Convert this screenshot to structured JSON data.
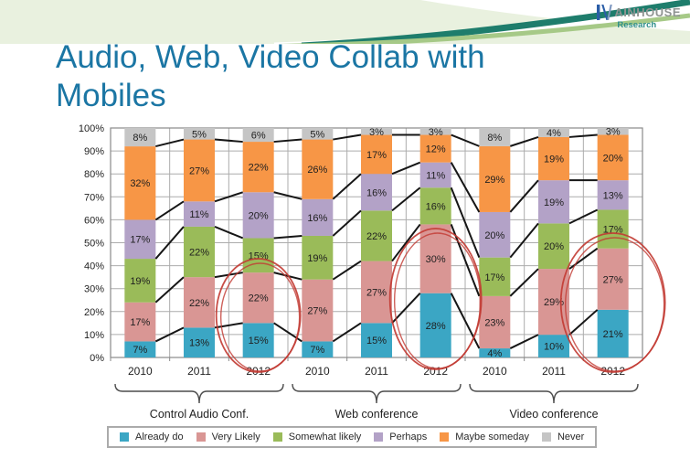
{
  "slide": {
    "title_line1": "Audio, Web, Video Collab with",
    "title_line2": "Mobiles"
  },
  "logo": {
    "wordmark": "AINHOUSE",
    "subtext": "Research"
  },
  "chart_data": {
    "type": "bar",
    "stacked": true,
    "title": "",
    "xlabel": "",
    "ylabel": "",
    "ylim": [
      0,
      100
    ],
    "grid": true,
    "legend_position": "bottom",
    "y_ticks": [
      "0%",
      "10%",
      "20%",
      "30%",
      "40%",
      "50%",
      "60%",
      "70%",
      "80%",
      "90%",
      "100%"
    ],
    "categories": [
      "2010",
      "2011",
      "2012",
      "2010",
      "2011",
      "2012",
      "2010",
      "2011",
      "2012"
    ],
    "group_size": 3,
    "group_labels": [
      "Control Audio Conf.",
      "Web conference",
      "Video conference"
    ],
    "series": [
      {
        "name": "Already do",
        "color": "#3ba6c4",
        "values": [
          7,
          13,
          15,
          7,
          15,
          28,
          4,
          10,
          21
        ]
      },
      {
        "name": "Very Likely",
        "color": "#d99694",
        "values": [
          17,
          22,
          22,
          27,
          27,
          30,
          23,
          29,
          27
        ]
      },
      {
        "name": "Somewhat likely",
        "color": "#9abb59",
        "values": [
          19,
          22,
          15,
          19,
          22,
          16,
          17,
          20,
          17
        ]
      },
      {
        "name": "Perhaps",
        "color": "#b3a2c7",
        "values": [
          17,
          11,
          20,
          16,
          16,
          11,
          20,
          19,
          13
        ]
      },
      {
        "name": "Maybe someday",
        "color": "#f79646",
        "values": [
          32,
          27,
          22,
          26,
          17,
          12,
          29,
          19,
          20
        ]
      },
      {
        "name": "Never",
        "color": "#c5c5c5",
        "values": [
          8,
          5,
          6,
          5,
          3,
          3,
          8,
          4,
          3
        ]
      }
    ],
    "series_lines": true,
    "circled_bar_indices": [
      2,
      5,
      8
    ],
    "circle_color": "#c23a32"
  },
  "theme": {
    "title_color": "#1b76a4",
    "band_color": "#e9f1df",
    "swoosh_dark": "#1e7d6c",
    "swoosh_light": "#a6c987",
    "logo_blue": "#2b5ea7",
    "connector_color": "#161616"
  }
}
